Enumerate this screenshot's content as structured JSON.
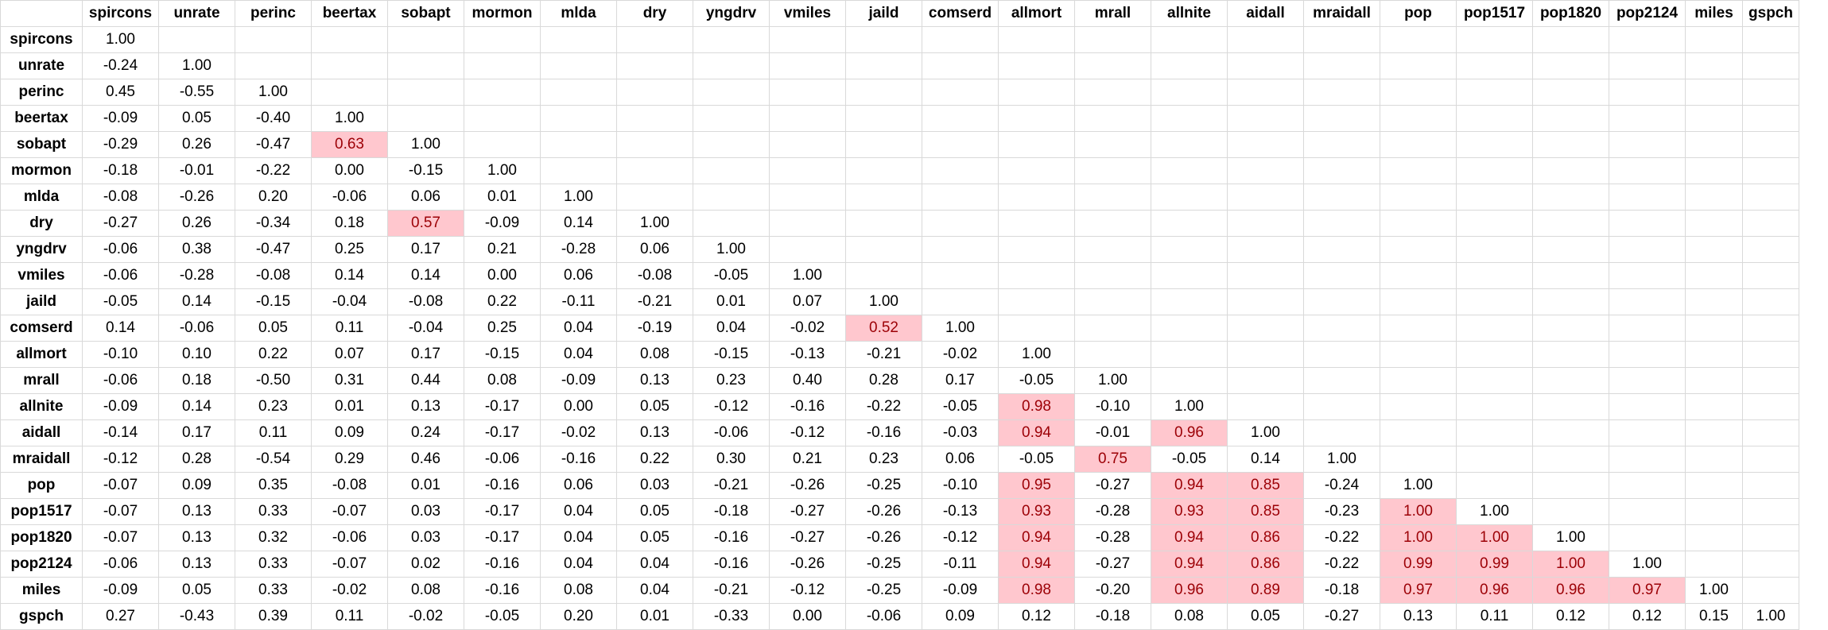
{
  "chart_data": {
    "type": "table",
    "highlight_threshold": 0.5,
    "highlight_colors": {
      "fill": "#ffc7ce",
      "text": "#9c0006"
    },
    "variables": [
      "spircons",
      "unrate",
      "perinc",
      "beertax",
      "sobapt",
      "mormon",
      "mlda",
      "dry",
      "yngdrv",
      "vmiles",
      "jaild",
      "comserd",
      "allmort",
      "mrall",
      "allnite",
      "aidall",
      "mraidall",
      "pop",
      "pop1517",
      "pop1820",
      "pop2124",
      "miles",
      "gspch"
    ],
    "rows": [
      [
        "1.00"
      ],
      [
        "-0.24",
        "1.00"
      ],
      [
        "0.45",
        "-0.55",
        "1.00"
      ],
      [
        "-0.09",
        "0.05",
        "-0.40",
        "1.00"
      ],
      [
        "-0.29",
        "0.26",
        "-0.47",
        "0.63",
        "1.00"
      ],
      [
        "-0.18",
        "-0.01",
        "-0.22",
        "0.00",
        "-0.15",
        "1.00"
      ],
      [
        "-0.08",
        "-0.26",
        "0.20",
        "-0.06",
        "0.06",
        "0.01",
        "1.00"
      ],
      [
        "-0.27",
        "0.26",
        "-0.34",
        "0.18",
        "0.57",
        "-0.09",
        "0.14",
        "1.00"
      ],
      [
        "-0.06",
        "0.38",
        "-0.47",
        "0.25",
        "0.17",
        "0.21",
        "-0.28",
        "0.06",
        "1.00"
      ],
      [
        "-0.06",
        "-0.28",
        "-0.08",
        "0.14",
        "0.14",
        "0.00",
        "0.06",
        "-0.08",
        "-0.05",
        "1.00"
      ],
      [
        "-0.05",
        "0.14",
        "-0.15",
        "-0.04",
        "-0.08",
        "0.22",
        "-0.11",
        "-0.21",
        "0.01",
        "0.07",
        "1.00"
      ],
      [
        "0.14",
        "-0.06",
        "0.05",
        "0.11",
        "-0.04",
        "0.25",
        "0.04",
        "-0.19",
        "0.04",
        "-0.02",
        "0.52",
        "1.00"
      ],
      [
        "-0.10",
        "0.10",
        "0.22",
        "0.07",
        "0.17",
        "-0.15",
        "0.04",
        "0.08",
        "-0.15",
        "-0.13",
        "-0.21",
        "-0.02",
        "1.00"
      ],
      [
        "-0.06",
        "0.18",
        "-0.50",
        "0.31",
        "0.44",
        "0.08",
        "-0.09",
        "0.13",
        "0.23",
        "0.40",
        "0.28",
        "0.17",
        "-0.05",
        "1.00"
      ],
      [
        "-0.09",
        "0.14",
        "0.23",
        "0.01",
        "0.13",
        "-0.17",
        "0.00",
        "0.05",
        "-0.12",
        "-0.16",
        "-0.22",
        "-0.05",
        "0.98",
        "-0.10",
        "1.00"
      ],
      [
        "-0.14",
        "0.17",
        "0.11",
        "0.09",
        "0.24",
        "-0.17",
        "-0.02",
        "0.13",
        "-0.06",
        "-0.12",
        "-0.16",
        "-0.03",
        "0.94",
        "-0.01",
        "0.96",
        "1.00"
      ],
      [
        "-0.12",
        "0.28",
        "-0.54",
        "0.29",
        "0.46",
        "-0.06",
        "-0.16",
        "0.22",
        "0.30",
        "0.21",
        "0.23",
        "0.06",
        "-0.05",
        "0.75",
        "-0.05",
        "0.14",
        "1.00"
      ],
      [
        "-0.07",
        "0.09",
        "0.35",
        "-0.08",
        "0.01",
        "-0.16",
        "0.06",
        "0.03",
        "-0.21",
        "-0.26",
        "-0.25",
        "-0.10",
        "0.95",
        "-0.27",
        "0.94",
        "0.85",
        "-0.24",
        "1.00"
      ],
      [
        "-0.07",
        "0.13",
        "0.33",
        "-0.07",
        "0.03",
        "-0.17",
        "0.04",
        "0.05",
        "-0.18",
        "-0.27",
        "-0.26",
        "-0.13",
        "0.93",
        "-0.28",
        "0.93",
        "0.85",
        "-0.23",
        "1.00",
        "1.00"
      ],
      [
        "-0.07",
        "0.13",
        "0.32",
        "-0.06",
        "0.03",
        "-0.17",
        "0.04",
        "0.05",
        "-0.16",
        "-0.27",
        "-0.26",
        "-0.12",
        "0.94",
        "-0.28",
        "0.94",
        "0.86",
        "-0.22",
        "1.00",
        "1.00",
        "1.00"
      ],
      [
        "-0.06",
        "0.13",
        "0.33",
        "-0.07",
        "0.02",
        "-0.16",
        "0.04",
        "0.04",
        "-0.16",
        "-0.26",
        "-0.25",
        "-0.11",
        "0.94",
        "-0.27",
        "0.94",
        "0.86",
        "-0.22",
        "0.99",
        "0.99",
        "1.00",
        "1.00"
      ],
      [
        "-0.09",
        "0.05",
        "0.33",
        "-0.02",
        "0.08",
        "-0.16",
        "0.08",
        "0.04",
        "-0.21",
        "-0.12",
        "-0.25",
        "-0.09",
        "0.98",
        "-0.20",
        "0.96",
        "0.89",
        "-0.18",
        "0.97",
        "0.96",
        "0.96",
        "0.97",
        "1.00"
      ],
      [
        "0.27",
        "-0.43",
        "0.39",
        "0.11",
        "-0.02",
        "-0.05",
        "0.20",
        "0.01",
        "-0.33",
        "0.00",
        "-0.06",
        "0.09",
        "0.12",
        "-0.18",
        "0.08",
        "0.05",
        "-0.27",
        "0.13",
        "0.11",
        "0.12",
        "0.12",
        "0.15",
        "1.00"
      ]
    ]
  }
}
